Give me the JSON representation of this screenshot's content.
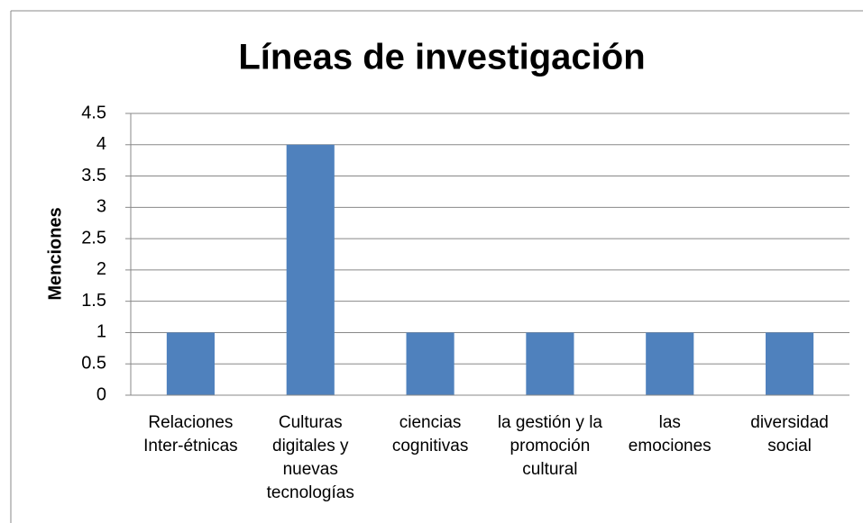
{
  "chart_data": {
    "type": "bar",
    "title": "Líneas de investigación",
    "y_label": "Menciones",
    "categories": [
      "Relaciones\nInter-étnicas",
      "Culturas\ndigitales y\nnuevas\ntecnologías",
      "ciencias\ncognitivas",
      "la gestión y la\npromoción\ncultural",
      "las\nemociones",
      "diversidad\nsocial"
    ],
    "values": [
      1,
      4,
      1,
      1,
      1,
      1
    ],
    "color": "#4f81bd",
    "ylim": [
      0,
      4.5
    ],
    "yticks": [
      0,
      0.5,
      1,
      1.5,
      2,
      2.5,
      3,
      3.5,
      4,
      4.5
    ],
    "grid": true
  }
}
